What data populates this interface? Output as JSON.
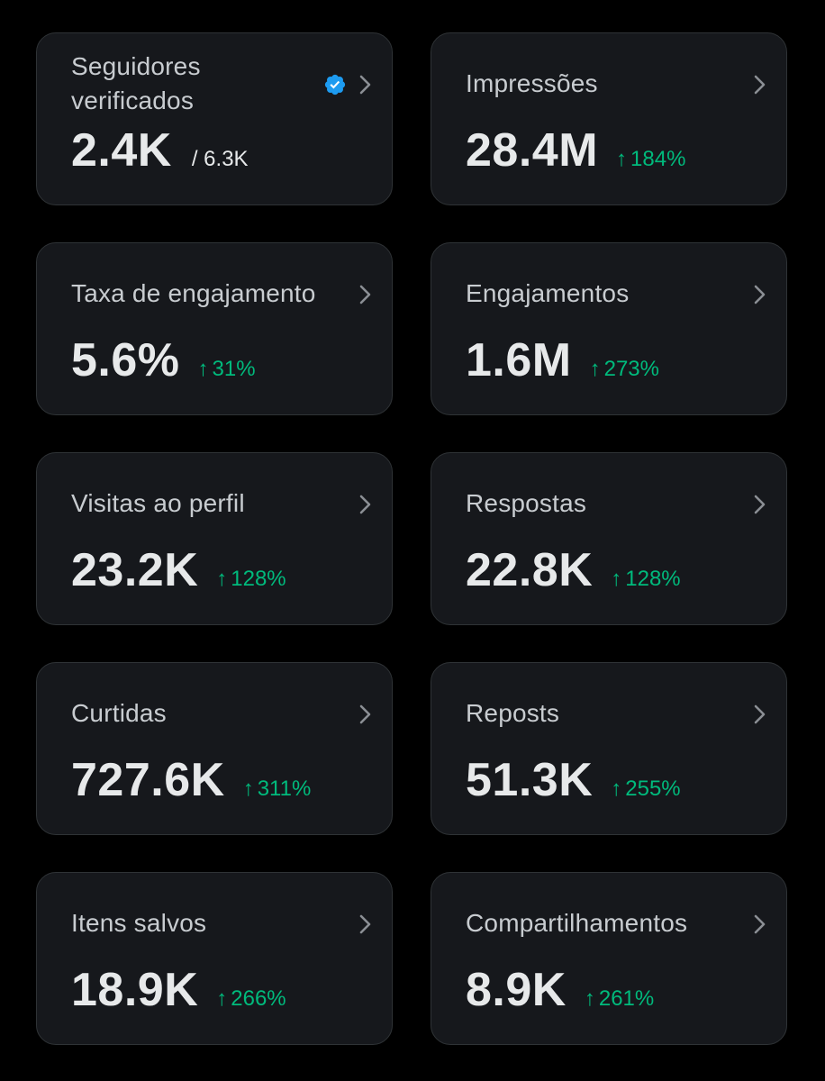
{
  "colors": {
    "background": "#000000",
    "card": "#16181c",
    "card_border": "#2f3336",
    "label_text": "#c8ccd0",
    "value_text": "#e7e9ea",
    "positive_change": "#00ba7c",
    "verified_badge": "#1d9bf0"
  },
  "icons": {
    "chevron": "chevron-right-icon",
    "verified": "verified-badge-icon",
    "change": "arrow-up-icon"
  },
  "cards": [
    {
      "label": "Seguidores verificados",
      "value": "2.4K",
      "total": "/ 6.3K",
      "change": ""
    },
    {
      "label": "Impressões",
      "value": "28.4M",
      "change": "184%"
    },
    {
      "label": "Taxa de engajamento",
      "value": "5.6%",
      "change": "31%"
    },
    {
      "label": "Engajamentos",
      "value": "1.6M",
      "change": "273%"
    },
    {
      "label": "Visitas ao perfil",
      "value": "23.2K",
      "change": "128%"
    },
    {
      "label": "Respostas",
      "value": "22.8K",
      "change": "128%"
    },
    {
      "label": "Curtidas",
      "value": "727.6K",
      "change": "311%"
    },
    {
      "label": "Reposts",
      "value": "51.3K",
      "change": "255%"
    },
    {
      "label": "Itens salvos",
      "value": "18.9K",
      "change": "266%"
    },
    {
      "label": "Compartilhamentos",
      "value": "8.9K",
      "change": "261%"
    }
  ],
  "arrow_glyph": "↑"
}
